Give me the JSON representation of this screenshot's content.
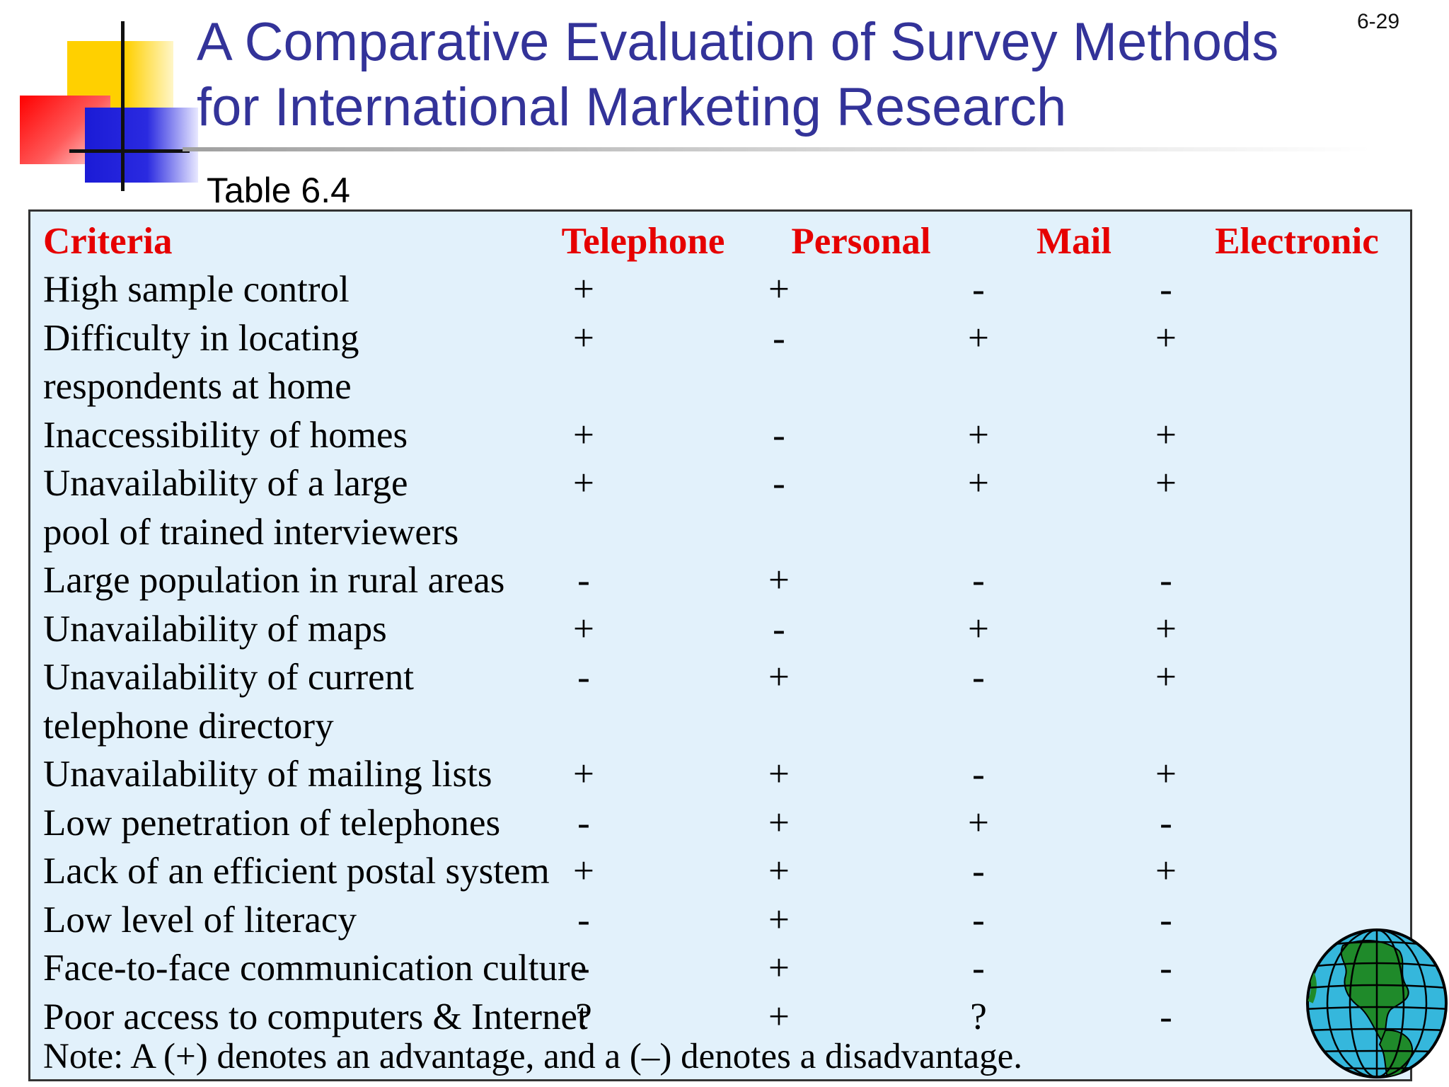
{
  "slide": {
    "title_line1": "A Comparative Evaluation of Survey Methods",
    "title_line2": "for International Marketing Research",
    "number": "6-29",
    "table_label": "Table 6.4"
  },
  "table": {
    "headers": [
      "Criteria",
      "Telephone",
      "Personal",
      "Mail",
      "Electronic"
    ],
    "rows": [
      {
        "criteria": "High sample control",
        "telephone": "+",
        "personal": "+",
        "mail": "-",
        "electronic": "-"
      },
      {
        "criteria": "Difficulty in locating",
        "telephone": "+",
        "personal": "-",
        "mail": "+",
        "electronic": "+"
      },
      {
        "criteria": "respondents at home",
        "telephone": "",
        "personal": "",
        "mail": "",
        "electronic": ""
      },
      {
        "criteria": "Inaccessibility of homes",
        "telephone": "+",
        "personal": "-",
        "mail": "+",
        "electronic": "+"
      },
      {
        "criteria": "Unavailability of a large",
        "telephone": "+",
        "personal": "-",
        "mail": "+",
        "electronic": "+"
      },
      {
        "criteria": "pool of trained interviewers",
        "telephone": "",
        "personal": "",
        "mail": "",
        "electronic": ""
      },
      {
        "criteria": "Large population in rural areas",
        "telephone": "-",
        "personal": "+",
        "mail": "-",
        "electronic": "-"
      },
      {
        "criteria": "Unavailability of maps",
        "telephone": "+",
        "personal": "-",
        "mail": "+",
        "electronic": "+"
      },
      {
        "criteria": "Unavailability of current",
        "telephone": "-",
        "personal": "+",
        "mail": "-",
        "electronic": "+"
      },
      {
        "criteria": "telephone directory",
        "telephone": "",
        "personal": "",
        "mail": "",
        "electronic": ""
      },
      {
        "criteria": "Unavailability of mailing lists",
        "telephone": "+",
        "personal": "+",
        "mail": "-",
        "electronic": "+"
      },
      {
        "criteria": "Low penetration of telephones",
        "telephone": "-",
        "personal": "+",
        "mail": "+",
        "electronic": "-"
      },
      {
        "criteria": "Lack of an efficient postal system",
        "telephone": "+",
        "personal": "+",
        "mail": "-",
        "electronic": "+"
      },
      {
        "criteria": "Low level of literacy",
        "telephone": "-",
        "personal": "+",
        "mail": "-",
        "electronic": "-"
      },
      {
        "criteria": "Face-to-face communication culture",
        "telephone": "-",
        "personal": "+",
        "mail": "-",
        "electronic": "-"
      },
      {
        "criteria": "Poor access to computers & Internet",
        "telephone": "?",
        "personal": "+",
        "mail": "?",
        "electronic": "-"
      }
    ],
    "note": "Note: A (+) denotes an advantage, and a (–) denotes a disadvantage."
  },
  "colors": {
    "title": "#333399",
    "header_text": "#e60000",
    "table_background": "#e2f1fb"
  },
  "icons": {
    "logo": "color-squares-logo",
    "globe": "globe-icon"
  }
}
